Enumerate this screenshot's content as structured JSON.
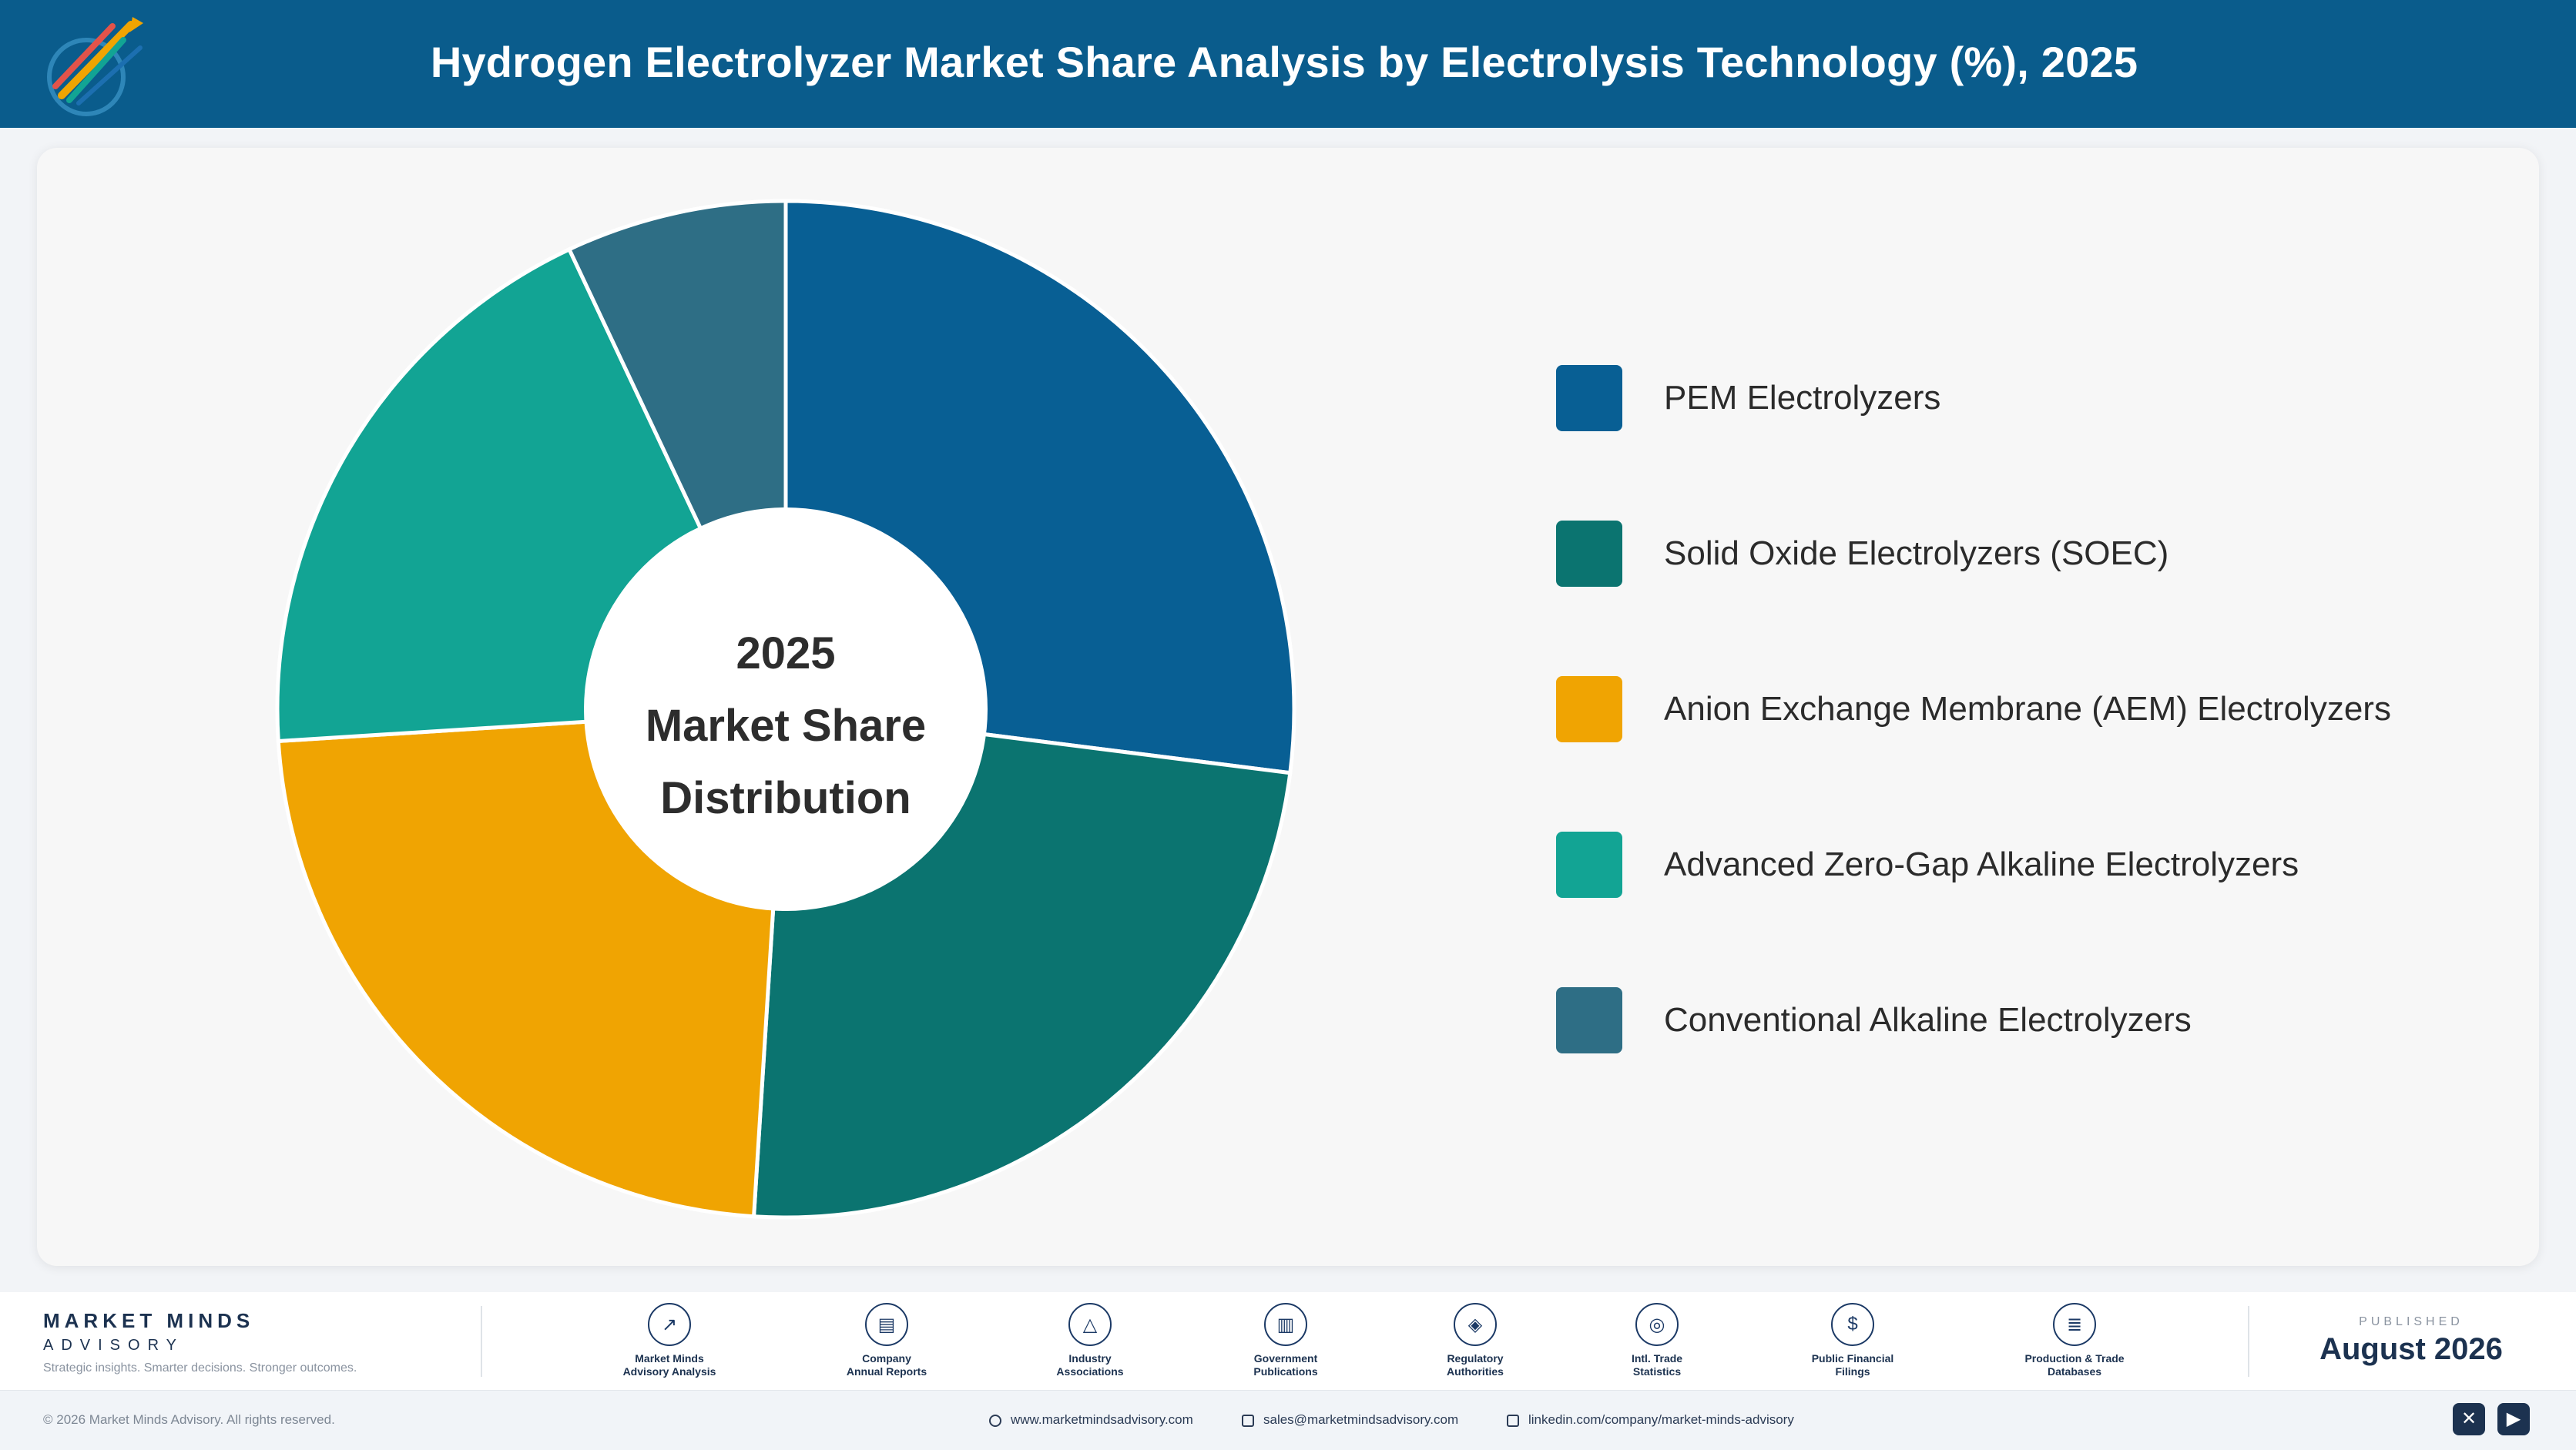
{
  "header": {
    "title": "Hydrogen Electrolyzer Market Share Analysis by Electrolysis Technology (%), 2025",
    "logo_icon": "market-minds-logo-icon"
  },
  "colors": {
    "header_bg": "#0a5c8c",
    "pem": "#085f94",
    "soec": "#0b7470",
    "aem": "#f0a402",
    "zero_gap": "#12a494",
    "conventional": "#2e6e85"
  },
  "chart_data": {
    "type": "pie",
    "style": "donut",
    "title": "Hydrogen Electrolyzer Market Share Analysis by Electrolysis Technology (%), 2025",
    "center_label": [
      "2025",
      "Market Share",
      "Distribution"
    ],
    "categories": [
      "PEM Electrolyzers",
      "Solid Oxide Electrolyzers (SOEC)",
      "Anion Exchange Membrane (AEM) Electrolyzers",
      "Advanced Zero-Gap Alkaline Electrolyzers",
      "Conventional Alkaline Electrolyzers"
    ],
    "values": [
      27.0,
      24.0,
      23.0,
      19.0,
      7.0
    ],
    "colors": [
      "#085f94",
      "#0b7470",
      "#f0a402",
      "#12a494",
      "#2e6e85"
    ],
    "legend_position": "right"
  },
  "footer": {
    "brand_name": "MARKET MINDS",
    "brand_sub": "ADVISORY",
    "tagline": "Strategic insights. Smarter decisions. Stronger outcomes.",
    "sources": [
      {
        "line1": "Market Minds",
        "line2": "Advisory Analysis",
        "icon": "chart-line-icon"
      },
      {
        "line1": "Company",
        "line2": "Annual Reports",
        "icon": "document-icon"
      },
      {
        "line1": "Industry",
        "line2": "Associations",
        "icon": "network-icon"
      },
      {
        "line1": "Government",
        "line2": "Publications",
        "icon": "building-icon"
      },
      {
        "line1": "Regulatory",
        "line2": "Authorities",
        "icon": "shield-icon"
      },
      {
        "line1": "Intl. Trade",
        "line2": "Statistics",
        "icon": "globe-icon"
      },
      {
        "line1": "Public Financial",
        "line2": "Filings",
        "icon": "coin-icon"
      },
      {
        "line1": "Production & Trade",
        "line2": "Databases",
        "icon": "database-icon"
      }
    ],
    "published_label": "PUBLISHED",
    "published_date": "August 2026",
    "copyright": "© 2026 Market Minds Advisory. All rights reserved.",
    "website": "www.marketmindsadvisory.com",
    "email": "sales@marketmindsadvisory.com",
    "linkedin": "linkedin.com/company/market-minds-advisory",
    "social": [
      {
        "name": "x",
        "icon": "x-icon",
        "glyph": "✕"
      },
      {
        "name": "youtube",
        "icon": "youtube-icon",
        "glyph": "▶"
      }
    ]
  }
}
